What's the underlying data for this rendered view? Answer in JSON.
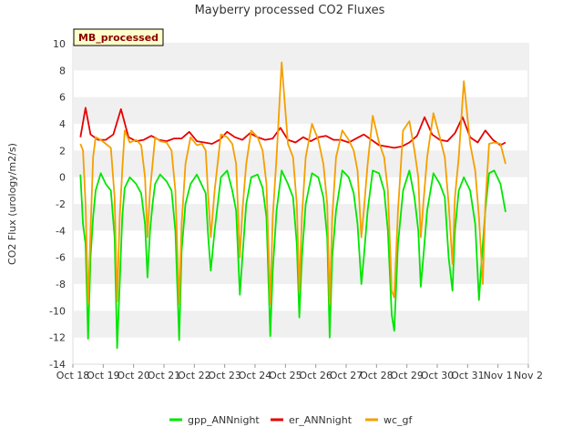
{
  "chart_data": {
    "type": "line",
    "title": "Mayberry processed CO2 Fluxes",
    "ylabel": "CO2 Flux (urology/m2/s)",
    "xlabel": "",
    "badge": "MB_processed",
    "ylim": [
      -14,
      10
    ],
    "yticks": [
      -14,
      -12,
      -10,
      -8,
      -6,
      -4,
      -2,
      0,
      2,
      4,
      6,
      8,
      10
    ],
    "xlim": [
      "2024-10-18",
      "2024-11-02"
    ],
    "xticks": [
      "Oct 18",
      "Oct 19",
      "Oct 20",
      "Oct 21",
      "Oct 22",
      "Oct 23",
      "Oct 24",
      "Oct 25",
      "Oct 26",
      "Oct 27",
      "Oct 28",
      "Oct 29",
      "Oct 30",
      "Oct 31",
      "Nov 1",
      "Nov 2"
    ],
    "grid": "horizontal bands",
    "legend_position": "bottom",
    "x_days_note": "",
    "series": [
      {
        "name": "gpp_ANNnight",
        "color": "#00e600",
        "x": [
          "2024-10-18 06:00",
          "2024-10-18 08:00",
          "2024-10-18 10:00",
          "2024-10-18 12:00",
          "2024-10-18 14:00",
          "2024-10-18 16:00",
          "2024-10-18 18:00",
          "2024-10-18 22:00",
          "2024-10-19 02:00",
          "2024-10-19 06:00",
          "2024-10-19 09:00",
          "2024-10-19 11:00",
          "2024-10-19 13:00",
          "2024-10-19 15:00",
          "2024-10-19 17:00",
          "2024-10-19 21:00",
          "2024-10-20 02:00",
          "2024-10-20 06:00",
          "2024-10-20 09:00",
          "2024-10-20 11:00",
          "2024-10-20 13:00",
          "2024-10-20 15:00",
          "2024-10-20 17:00",
          "2024-10-20 21:00",
          "2024-10-21 02:00",
          "2024-10-21 06:00",
          "2024-10-21 09:00",
          "2024-10-21 12:00",
          "2024-10-21 14:00",
          "2024-10-21 17:00",
          "2024-10-21 21:00",
          "2024-10-22 02:00",
          "2024-10-22 06:00",
          "2024-10-22 09:00",
          "2024-10-22 11:00",
          "2024-10-22 13:00",
          "2024-10-22 16:00",
          "2024-10-22 21:00",
          "2024-10-23 02:00",
          "2024-10-23 06:00",
          "2024-10-23 09:00",
          "2024-10-23 12:00",
          "2024-10-23 14:00",
          "2024-10-23 17:00",
          "2024-10-23 21:00",
          "2024-10-24 02:00",
          "2024-10-24 06:00",
          "2024-10-24 09:00",
          "2024-10-24 12:00",
          "2024-10-24 14:00",
          "2024-10-24 17:00",
          "2024-10-24 21:00",
          "2024-10-25 02:00",
          "2024-10-25 06:00",
          "2024-10-25 09:00",
          "2024-10-25 11:00",
          "2024-10-25 13:00",
          "2024-10-25 16:00",
          "2024-10-25 21:00",
          "2024-10-26 02:00",
          "2024-10-26 06:00",
          "2024-10-26 09:00",
          "2024-10-26 11:00",
          "2024-10-26 13:00",
          "2024-10-26 16:00",
          "2024-10-26 21:00",
          "2024-10-27 02:00",
          "2024-10-27 06:00",
          "2024-10-27 09:00",
          "2024-10-27 12:00",
          "2024-10-27 14:00",
          "2024-10-27 17:00",
          "2024-10-27 21:00",
          "2024-10-28 02:00",
          "2024-10-28 06:00",
          "2024-10-28 09:00",
          "2024-10-28 12:00",
          "2024-10-28 14:00",
          "2024-10-28 17:00",
          "2024-10-28 21:00",
          "2024-10-29 02:00",
          "2024-10-29 06:00",
          "2024-10-29 09:00",
          "2024-10-29 11:00",
          "2024-10-29 13:00",
          "2024-10-29 16:00",
          "2024-10-29 21:00",
          "2024-10-30 02:00",
          "2024-10-30 06:00",
          "2024-10-30 09:00",
          "2024-10-30 12:00",
          "2024-10-30 14:00",
          "2024-10-30 17:00",
          "2024-10-30 21:00",
          "2024-10-31 02:00",
          "2024-10-31 06:00",
          "2024-10-31 09:00",
          "2024-10-31 12:00",
          "2024-10-31 14:00",
          "2024-10-31 17:00",
          "2024-10-31 21:00",
          "2024-11-01 02:00",
          "2024-11-01 06:00"
        ],
        "values": [
          0.2,
          -3.5,
          -5.0,
          -12.1,
          -6.0,
          -3.0,
          -1.0,
          0.3,
          -0.5,
          -1.0,
          -4.5,
          -12.8,
          -8.0,
          -3.0,
          -0.8,
          0.0,
          -0.5,
          -1.2,
          -3.5,
          -7.5,
          -4.0,
          -2.0,
          -0.5,
          0.2,
          -0.3,
          -1.0,
          -4.0,
          -12.2,
          -5.5,
          -2.0,
          -0.5,
          0.2,
          -0.6,
          -1.2,
          -4.5,
          -7.0,
          -4.0,
          0.0,
          0.5,
          -1.0,
          -2.5,
          -8.8,
          -6.0,
          -2.0,
          0.0,
          0.2,
          -0.8,
          -3.0,
          -11.9,
          -7.0,
          -2.5,
          0.5,
          -0.5,
          -1.5,
          -5.0,
          -10.5,
          -6.0,
          -2.0,
          0.3,
          0.0,
          -1.5,
          -4.5,
          -12.0,
          -6.0,
          -2.5,
          0.5,
          0.0,
          -1.2,
          -3.5,
          -8.0,
          -6.0,
          -2.5,
          0.5,
          0.3,
          -1.0,
          -4.0,
          -10.3,
          -11.5,
          -5.0,
          -1.0,
          0.5,
          -1.5,
          -4.0,
          -8.2,
          -6.0,
          -2.5,
          0.3,
          -0.5,
          -1.5,
          -6.0,
          -8.5,
          -4.0,
          -1.0,
          0.0,
          -1.0,
          -3.5,
          -9.2,
          -5.0,
          -2.5,
          0.3,
          0.5,
          -0.5,
          -2.6
        ]
      },
      {
        "name": "er_ANNnight",
        "color": "#e60000",
        "x": [
          "2024-10-18 06:00",
          "2024-10-18 10:00",
          "2024-10-18 14:00",
          "2024-10-18 20:00",
          "2024-10-19 02:00",
          "2024-10-19 08:00",
          "2024-10-19 14:00",
          "2024-10-19 20:00",
          "2024-10-20 02:00",
          "2024-10-20 08:00",
          "2024-10-20 14:00",
          "2024-10-20 20:00",
          "2024-10-21 02:00",
          "2024-10-21 08:00",
          "2024-10-21 14:00",
          "2024-10-21 20:00",
          "2024-10-22 02:00",
          "2024-10-22 08:00",
          "2024-10-22 14:00",
          "2024-10-22 20:00",
          "2024-10-23 02:00",
          "2024-10-23 08:00",
          "2024-10-23 14:00",
          "2024-10-23 20:00",
          "2024-10-24 02:00",
          "2024-10-24 08:00",
          "2024-10-24 14:00",
          "2024-10-24 20:00",
          "2024-10-25 02:00",
          "2024-10-25 08:00",
          "2024-10-25 14:00",
          "2024-10-25 20:00",
          "2024-10-26 02:00",
          "2024-10-26 08:00",
          "2024-10-26 14:00",
          "2024-10-26 20:00",
          "2024-10-27 02:00",
          "2024-10-27 08:00",
          "2024-10-27 14:00",
          "2024-10-27 20:00",
          "2024-10-28 02:00",
          "2024-10-28 08:00",
          "2024-10-28 14:00",
          "2024-10-28 20:00",
          "2024-10-29 02:00",
          "2024-10-29 08:00",
          "2024-10-29 14:00",
          "2024-10-29 20:00",
          "2024-10-30 02:00",
          "2024-10-30 08:00",
          "2024-10-30 14:00",
          "2024-10-30 20:00",
          "2024-10-31 02:00",
          "2024-10-31 08:00",
          "2024-10-31 14:00",
          "2024-10-31 20:00",
          "2024-11-01 02:00",
          "2024-11-01 06:00"
        ],
        "values": [
          3.0,
          5.2,
          3.2,
          2.8,
          2.8,
          3.2,
          5.1,
          3.0,
          2.7,
          2.8,
          3.1,
          2.8,
          2.7,
          2.9,
          2.9,
          3.4,
          2.7,
          2.6,
          2.5,
          2.8,
          3.4,
          3.0,
          2.8,
          3.3,
          3.0,
          2.8,
          2.9,
          3.7,
          2.8,
          2.6,
          3.0,
          2.7,
          3.0,
          3.1,
          2.8,
          2.8,
          2.6,
          2.9,
          3.2,
          2.8,
          2.4,
          2.3,
          2.2,
          2.3,
          2.6,
          3.1,
          4.5,
          3.2,
          2.8,
          2.7,
          3.3,
          4.5,
          3.0,
          2.6,
          3.5,
          2.8,
          2.4,
          2.6
        ]
      },
      {
        "name": "wc_gf",
        "color": "#f59f00",
        "x": [
          "2024-10-18 06:00",
          "2024-10-18 08:00",
          "2024-10-18 10:00",
          "2024-10-18 12:00",
          "2024-10-18 14:00",
          "2024-10-18 16:00",
          "2024-10-18 18:00",
          "2024-10-18 22:00",
          "2024-10-19 02:00",
          "2024-10-19 06:00",
          "2024-10-19 09:00",
          "2024-10-19 11:00",
          "2024-10-19 13:00",
          "2024-10-19 15:00",
          "2024-10-19 17:00",
          "2024-10-19 21:00",
          "2024-10-20 02:00",
          "2024-10-20 06:00",
          "2024-10-20 09:00",
          "2024-10-20 11:00",
          "2024-10-20 13:00",
          "2024-10-20 15:00",
          "2024-10-20 17:00",
          "2024-10-20 21:00",
          "2024-10-21 02:00",
          "2024-10-21 06:00",
          "2024-10-21 09:00",
          "2024-10-21 12:00",
          "2024-10-21 14:00",
          "2024-10-21 17:00",
          "2024-10-21 21:00",
          "2024-10-22 02:00",
          "2024-10-22 06:00",
          "2024-10-22 09:00",
          "2024-10-22 11:00",
          "2024-10-22 13:00",
          "2024-10-22 16:00",
          "2024-10-22 21:00",
          "2024-10-23 02:00",
          "2024-10-23 06:00",
          "2024-10-23 09:00",
          "2024-10-23 12:00",
          "2024-10-23 14:00",
          "2024-10-23 17:00",
          "2024-10-23 21:00",
          "2024-10-24 02:00",
          "2024-10-24 06:00",
          "2024-10-24 09:00",
          "2024-10-24 12:00",
          "2024-10-24 14:00",
          "2024-10-24 17:00",
          "2024-10-24 21:00",
          "2024-10-25 02:00",
          "2024-10-25 06:00",
          "2024-10-25 09:00",
          "2024-10-25 11:00",
          "2024-10-25 13:00",
          "2024-10-25 16:00",
          "2024-10-25 21:00",
          "2024-10-26 02:00",
          "2024-10-26 06:00",
          "2024-10-26 09:00",
          "2024-10-26 11:00",
          "2024-10-26 13:00",
          "2024-10-26 16:00",
          "2024-10-26 21:00",
          "2024-10-27 02:00",
          "2024-10-27 06:00",
          "2024-10-27 09:00",
          "2024-10-27 12:00",
          "2024-10-27 14:00",
          "2024-10-27 17:00",
          "2024-10-27 21:00",
          "2024-10-28 02:00",
          "2024-10-28 06:00",
          "2024-10-28 09:00",
          "2024-10-28 12:00",
          "2024-10-28 14:00",
          "2024-10-28 17:00",
          "2024-10-28 21:00",
          "2024-10-29 02:00",
          "2024-10-29 06:00",
          "2024-10-29 09:00",
          "2024-10-29 11:00",
          "2024-10-29 13:00",
          "2024-10-29 16:00",
          "2024-10-29 21:00",
          "2024-10-30 02:00",
          "2024-10-30 06:00",
          "2024-10-30 09:00",
          "2024-10-30 12:00",
          "2024-10-30 14:00",
          "2024-10-30 17:00",
          "2024-10-30 21:00",
          "2024-10-31 02:00",
          "2024-10-31 06:00",
          "2024-10-31 09:00",
          "2024-10-31 12:00",
          "2024-10-31 14:00",
          "2024-10-31 17:00",
          "2024-10-31 21:00",
          "2024-11-01 02:00",
          "2024-11-01 06:00"
        ],
        "values": [
          2.5,
          2.0,
          -2.0,
          -9.5,
          -4.0,
          1.5,
          3.0,
          2.8,
          2.5,
          2.2,
          -1.5,
          -9.3,
          -3.0,
          0.5,
          3.5,
          2.6,
          2.8,
          2.4,
          0.0,
          -4.5,
          -1.0,
          1.0,
          3.0,
          2.7,
          2.6,
          2.0,
          -1.0,
          -9.5,
          -3.5,
          1.0,
          3.0,
          2.4,
          2.5,
          2.0,
          -1.5,
          -4.5,
          -1.0,
          3.2,
          3.0,
          2.5,
          1.0,
          -6.0,
          -2.5,
          1.0,
          3.5,
          3.0,
          2.0,
          -0.5,
          -9.5,
          -3.0,
          1.5,
          8.6,
          2.5,
          1.5,
          -2.0,
          -8.5,
          -3.0,
          1.5,
          4.0,
          2.8,
          1.0,
          -2.0,
          -9.5,
          -3.0,
          1.5,
          3.5,
          2.8,
          2.0,
          0.5,
          -4.5,
          -2.5,
          1.0,
          4.6,
          2.6,
          1.5,
          -1.0,
          -8.5,
          -9.0,
          -2.5,
          3.5,
          4.2,
          2.0,
          0.0,
          -4.5,
          -2.0,
          1.5,
          4.8,
          3.0,
          1.5,
          -2.0,
          -6.5,
          -1.5,
          1.5,
          7.2,
          2.5,
          0.5,
          -3.0,
          -8.0,
          -2.0,
          2.5,
          2.6,
          2.5,
          1.0
        ]
      }
    ]
  }
}
